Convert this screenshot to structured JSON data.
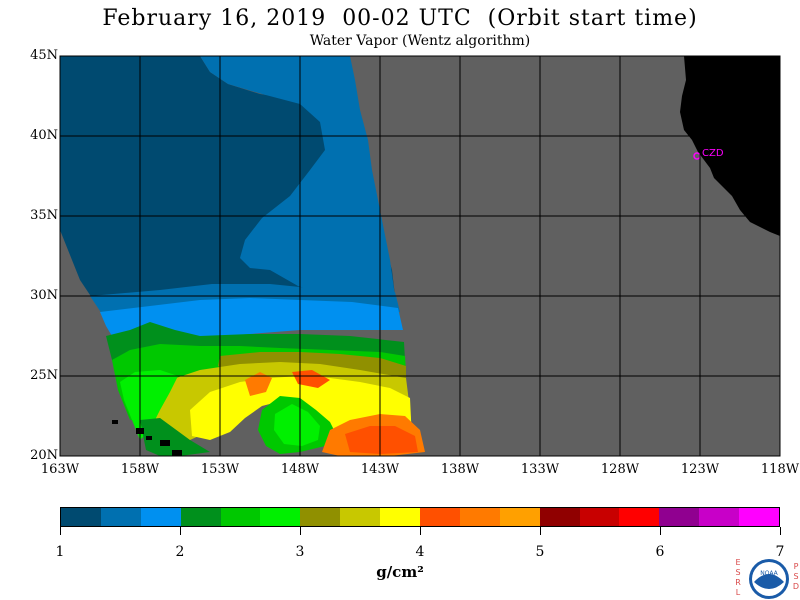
{
  "header": {
    "title": "February 16, 2019  00-02 UTC  (Orbit start time)",
    "subtitle": "Water Vapor (Wentz algorithm)"
  },
  "map": {
    "lat_labels": [
      "45N",
      "40N",
      "35N",
      "30N",
      "25N",
      "20N"
    ],
    "lon_labels": [
      "163W",
      "158W",
      "153W",
      "148W",
      "143W",
      "138W",
      "133W",
      "128W",
      "123W",
      "118W"
    ],
    "station_label": "CZD",
    "colors": {
      "no_data": "#606060",
      "land": "#000000",
      "grid": "#000000",
      "station": "#ff00ff"
    }
  },
  "colorbar": {
    "tick_labels": [
      "1",
      "2",
      "3",
      "4",
      "5",
      "6",
      "7"
    ],
    "units": "g/cm²",
    "colors": [
      "#004a70",
      "#0070b0",
      "#0090f0",
      "#00901c",
      "#00c800",
      "#00f000",
      "#909000",
      "#c8c800",
      "#ffff00",
      "#ff5000",
      "#ff7a00",
      "#ffa000",
      "#900000",
      "#c80000",
      "#ff0000",
      "#900090",
      "#c800c8",
      "#ff00ff"
    ]
  },
  "logo": {
    "name": "noaa-logo",
    "text": "NOAA",
    "left_letters": "ESRL",
    "right_letters": "PSD"
  }
}
